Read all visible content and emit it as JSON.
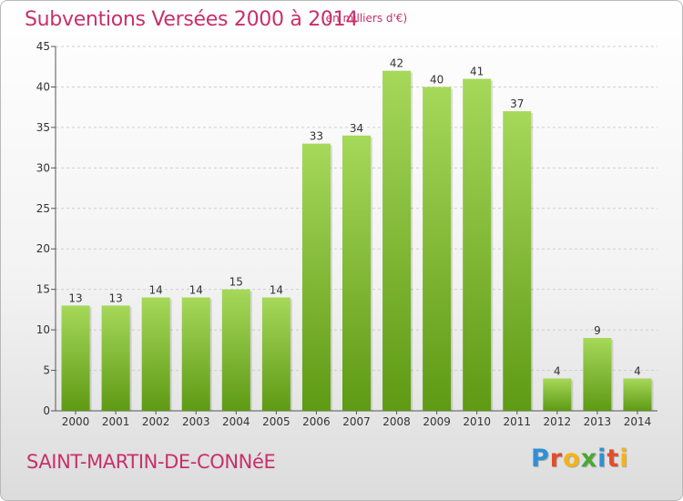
{
  "header": {
    "title": "Subventions Versées 2000 à 2014",
    "unit": "(en milliers d'€)"
  },
  "footer": {
    "commune": "SAINT-MARTIN-DE-CONNéE",
    "logo": [
      "P",
      "r",
      "o",
      "x",
      "i",
      "t",
      "i"
    ]
  },
  "colors": {
    "accent": "#c8306a",
    "bar_top": "#a6d85a",
    "bar_bottom": "#5e9a14"
  },
  "chart_data": {
    "type": "bar",
    "title": "Subventions Versées 2000 à 2014",
    "categories": [
      "2000",
      "2001",
      "2002",
      "2003",
      "2004",
      "2005",
      "2006",
      "2007",
      "2008",
      "2009",
      "2010",
      "2011",
      "2012",
      "2013",
      "2014"
    ],
    "values": [
      13,
      13,
      14,
      14,
      15,
      14,
      33,
      34,
      42,
      40,
      41,
      37,
      4,
      9,
      4
    ],
    "ylim": [
      0,
      45
    ],
    "yticks": [
      0,
      5,
      10,
      15,
      20,
      25,
      30,
      35,
      40,
      45
    ],
    "grid": true,
    "legend": "none"
  }
}
